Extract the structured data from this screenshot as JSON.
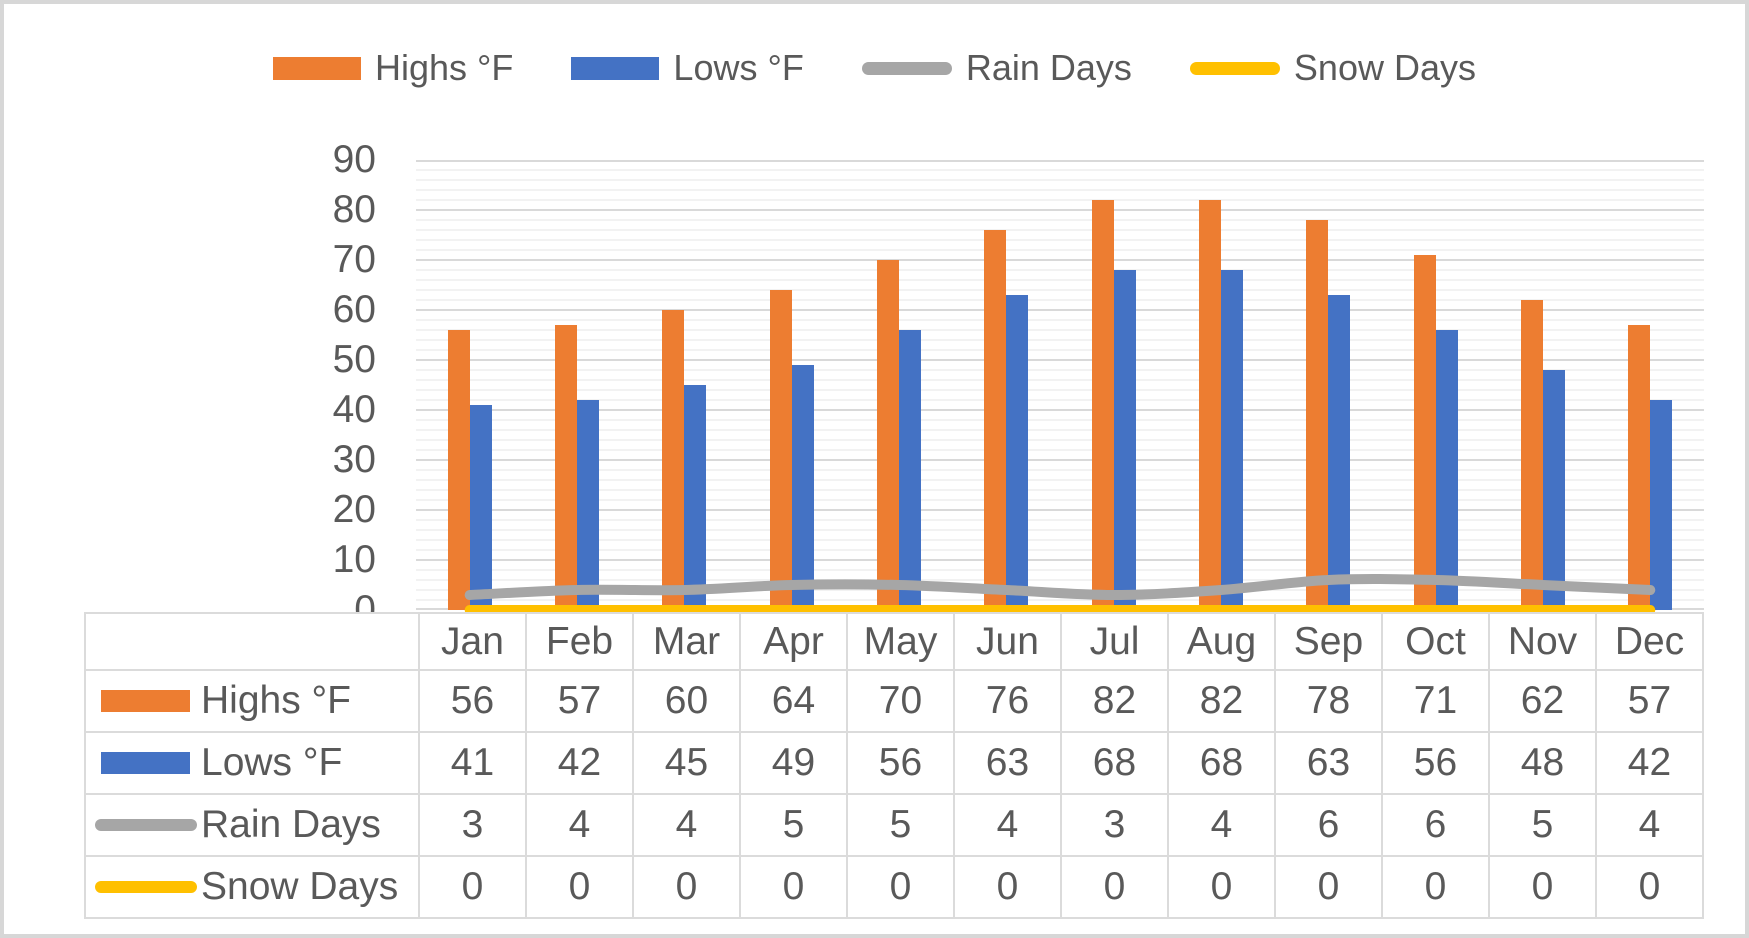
{
  "chart_data": {
    "type": "combo",
    "title": "",
    "categories": [
      "Jan",
      "Feb",
      "Mar",
      "Apr",
      "May",
      "Jun",
      "Jul",
      "Aug",
      "Sep",
      "Oct",
      "Nov",
      "Dec"
    ],
    "series": [
      {
        "name": "Highs °F",
        "kind": "bar",
        "color": "#ED7D31",
        "values": [
          56,
          57,
          60,
          64,
          70,
          76,
          82,
          82,
          78,
          71,
          62,
          57
        ]
      },
      {
        "name": "Lows °F",
        "kind": "bar",
        "color": "#4472C4",
        "values": [
          41,
          42,
          45,
          49,
          56,
          63,
          68,
          68,
          63,
          56,
          48,
          42
        ]
      },
      {
        "name": "Rain Days",
        "kind": "line",
        "color": "#A6A6A6",
        "values": [
          3,
          4,
          4,
          5,
          5,
          4,
          3,
          4,
          6,
          6,
          5,
          4
        ]
      },
      {
        "name": "Snow Days",
        "kind": "line",
        "color": "#FFC000",
        "values": [
          0,
          0,
          0,
          0,
          0,
          0,
          0,
          0,
          0,
          0,
          0,
          0
        ]
      }
    ],
    "y_axis": {
      "min": 0,
      "max": 90,
      "major_unit": 10,
      "minor_unit": 2,
      "tick_labels": [
        "0",
        "10",
        "20",
        "30",
        "40",
        "50",
        "60",
        "70",
        "80",
        "90"
      ]
    },
    "grid": {
      "major_color": "#d9d9d9",
      "minor_color": "#f2f2f2"
    },
    "legend_position": "top",
    "data_table_shown": true
  }
}
